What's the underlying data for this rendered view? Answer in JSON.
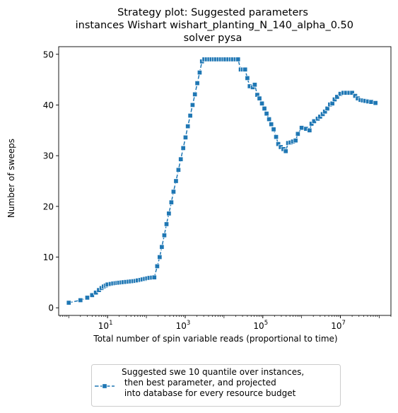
{
  "title_lines": [
    "Strategy plot: Suggested parameters",
    " instances Wishart wishart_planting_N_140_alpha_0.50",
    "solver pysa"
  ],
  "chart_data": {
    "type": "line",
    "x_scale": "log",
    "xlabel": "Total number of spin variable reads (proportional to time)",
    "ylabel": "Number of sweeps",
    "xlim": [
      0.55,
      200000000
    ],
    "ylim": [
      -1.5,
      51.5
    ],
    "x_ticks": [
      {
        "value": 10,
        "base": "10",
        "exp": "1"
      },
      {
        "value": 1000,
        "base": "10",
        "exp": "3"
      },
      {
        "value": 100000,
        "base": "10",
        "exp": "5"
      },
      {
        "value": 10000000,
        "base": "10",
        "exp": "7"
      }
    ],
    "y_ticks": [
      {
        "value": 0,
        "label": "0"
      },
      {
        "value": 10,
        "label": "10"
      },
      {
        "value": 20,
        "label": "20"
      },
      {
        "value": 30,
        "label": "30"
      },
      {
        "value": 40,
        "label": "40"
      },
      {
        "value": 50,
        "label": "50"
      }
    ],
    "grid": false,
    "legend_position": "bottom-center, below plot",
    "series": [
      {
        "name": "Suggested swe 10 quantile over instances,\n then best parameter, and projected\n into database for every resource budget",
        "color": "#1f77b4",
        "marker": "square",
        "linestyle": "dashed",
        "x": [
          1,
          2,
          3,
          4,
          5,
          6,
          7,
          8,
          9,
          10,
          12,
          14,
          16,
          18,
          20,
          23,
          26,
          30,
          35,
          40,
          46,
          53,
          60,
          70,
          80,
          92,
          105,
          120,
          140,
          160,
          190,
          220,
          250,
          290,
          330,
          380,
          440,
          500,
          580,
          670,
          770,
          890,
          1020,
          1170,
          1350,
          1550,
          1780,
          2050,
          2360,
          2710,
          3120,
          3600,
          4200,
          4800,
          5500,
          6300,
          7300,
          8400,
          9700,
          11000,
          13000,
          15000,
          17000,
          20000,
          23000,
          27000,
          31000,
          35000,
          40000,
          46000,
          55000,
          62000,
          72000,
          82000,
          95000,
          110000,
          125000,
          145000,
          165000,
          190000,
          220000,
          250000,
          290000,
          340000,
          390000,
          450000,
          520000,
          600000,
          700000,
          800000,
          1000000,
          1300000,
          1600000,
          1800000,
          2100000,
          2600000,
          3000000,
          3500000,
          4000000,
          4600000,
          5400000,
          6200000,
          7100000,
          8200000,
          10000000,
          12000000,
          14000000,
          17000000,
          20000000,
          24000000,
          28000000,
          33000000,
          38000000,
          44000000,
          52000000,
          62000000,
          80000000
        ],
        "y": [
          1.0,
          1.5,
          2.0,
          2.5,
          3.0,
          3.5,
          3.9,
          4.2,
          4.4,
          4.6,
          4.7,
          4.8,
          4.85,
          4.9,
          4.95,
          5.0,
          5.05,
          5.1,
          5.15,
          5.2,
          5.25,
          5.3,
          5.4,
          5.5,
          5.6,
          5.7,
          5.8,
          5.9,
          5.95,
          6.0,
          8.2,
          10.0,
          12.0,
          14.3,
          16.5,
          18.6,
          20.8,
          22.9,
          25.0,
          27.2,
          29.3,
          31.5,
          33.6,
          35.8,
          37.9,
          40.0,
          42.1,
          44.3,
          46.4,
          48.6,
          49.0,
          49.0,
          49.0,
          49.0,
          49.0,
          49.0,
          49.0,
          49.0,
          49.0,
          49.0,
          49.0,
          49.0,
          49.0,
          49.0,
          49.0,
          47.0,
          47.0,
          47.0,
          45.3,
          43.7,
          43.5,
          44.0,
          42.0,
          41.3,
          40.3,
          39.3,
          38.3,
          37.2,
          36.2,
          35.2,
          33.7,
          32.3,
          31.7,
          31.3,
          30.9,
          32.5,
          32.6,
          32.8,
          33.0,
          34.3,
          35.5,
          35.3,
          35.0,
          36.3,
          36.8,
          37.3,
          37.7,
          38.2,
          38.7,
          39.3,
          40.1,
          40.3,
          41.1,
          41.6,
          42.2,
          42.4,
          42.4,
          42.4,
          42.4,
          41.8,
          41.3,
          41.0,
          40.9,
          40.8,
          40.7,
          40.6,
          40.4
        ]
      }
    ]
  }
}
